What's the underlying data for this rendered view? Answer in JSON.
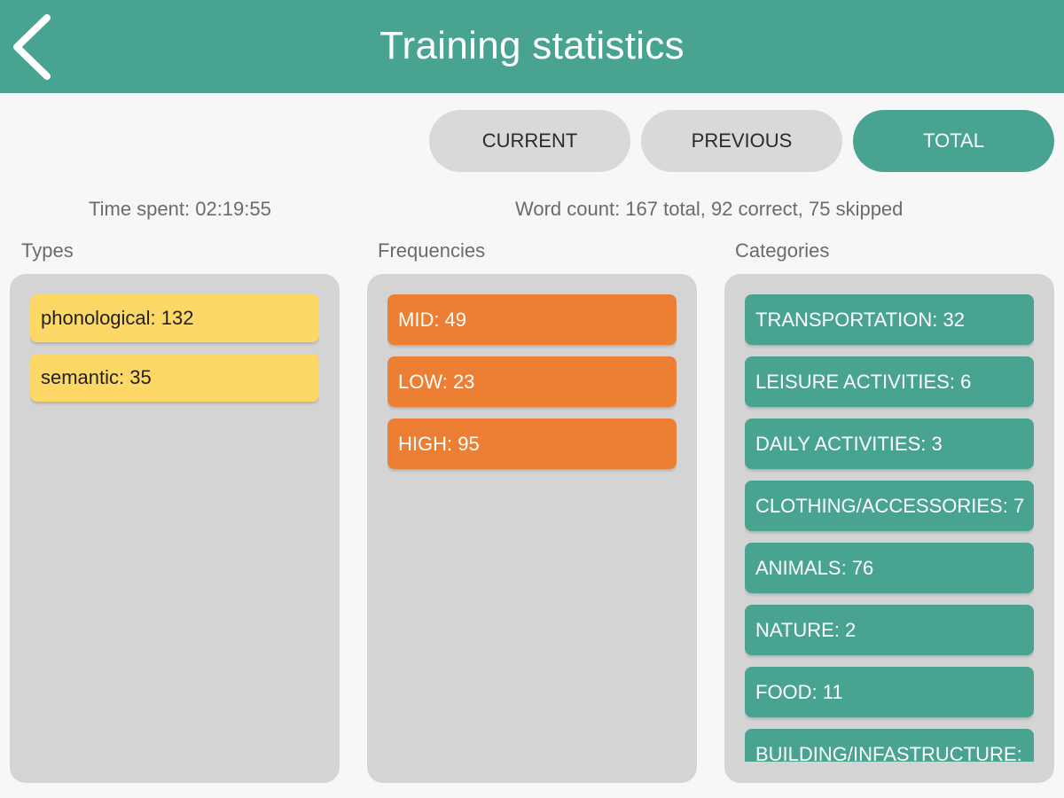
{
  "header": {
    "title": "Training statistics",
    "back_icon": "chevron-left-icon"
  },
  "tabs": [
    {
      "label": "CURRENT",
      "active": false
    },
    {
      "label": "PREVIOUS",
      "active": false
    },
    {
      "label": "TOTAL",
      "active": true
    }
  ],
  "summary": {
    "time_spent": "Time spent: 02:19:55",
    "word_count": "Word count: 167 total, 92 correct, 75 skipped"
  },
  "columns": {
    "types": {
      "label": "Types",
      "items": [
        "phonological: 132",
        "semantic: 35"
      ]
    },
    "frequencies": {
      "label": "Frequencies",
      "items": [
        "MID: 49",
        "LOW: 23",
        "HIGH: 95"
      ]
    },
    "categories": {
      "label": "Categories",
      "items": [
        "TRANSPORTATION: 32",
        "LEISURE ACTIVITIES: 6",
        "DAILY ACTIVITIES: 3",
        "CLOTHING/ACCESSORIES: 7",
        "ANIMALS: 76",
        "NATURE: 2",
        "FOOD: 11",
        "BUILDING/INFASTRUCTURE:"
      ]
    }
  },
  "colors": {
    "primary": "#48a390",
    "tab_inactive": "#d9d9d9",
    "type_chip": "#fdd866",
    "frequency_chip": "#ec7f33",
    "category_chip": "#48a390",
    "panel_bg": "#d4d4d4"
  }
}
